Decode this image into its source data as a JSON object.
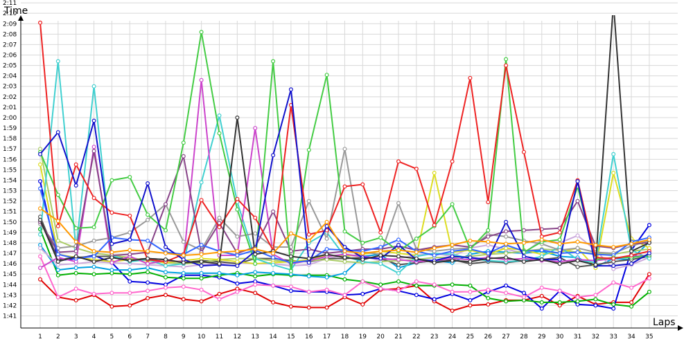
{
  "chart_data": {
    "type": "line",
    "title": "",
    "xlabel": "Laps",
    "ylabel": "Time",
    "x": [
      1,
      2,
      3,
      4,
      5,
      6,
      7,
      8,
      9,
      10,
      11,
      12,
      13,
      14,
      15,
      16,
      17,
      18,
      19,
      20,
      21,
      22,
      23,
      24,
      25,
      26,
      27,
      28,
      29,
      30,
      31,
      32,
      33,
      34,
      35
    ],
    "xlim": [
      0,
      35
    ],
    "ylim": [
      100,
      132
    ],
    "yticks": [
      "1:41",
      "1:42",
      "1:43",
      "1:44",
      "1:45",
      "1:46",
      "1:47",
      "1:48",
      "1:49",
      "1:50",
      "1:51",
      "1:52",
      "1:53",
      "1:54",
      "1:55",
      "1:56",
      "1:57",
      "1:58",
      "1:59",
      "2:00",
      "2:01",
      "2:02",
      "2:03",
      "2:04",
      "2:05",
      "2:06",
      "2:07",
      "2:08",
      "2:09",
      "2:10",
      "2:11"
    ],
    "grid": true,
    "legend": "none",
    "series": [
      {
        "color": "#e00000",
        "values": [
          104.5,
          102.8,
          102.5,
          103.0,
          101.9,
          102.0,
          102.7,
          103.0,
          102.6,
          102.4,
          103.1,
          103.6,
          103.2,
          102.3,
          101.9,
          101.8,
          101.8,
          102.8,
          102.1,
          103.5,
          103.6,
          103.9,
          102.4,
          101.5,
          102.0,
          102.1,
          102.5,
          102.5,
          102.9,
          102.0,
          102.9,
          102.1,
          102.3,
          102.3,
          105.0
        ]
      },
      {
        "color": "#0000e0",
        "values": [
          113.9,
          106.3,
          106.5,
          106.8,
          106.1,
          104.3,
          104.2,
          104.0,
          104.9,
          104.9,
          104.7,
          104.1,
          104.3,
          103.9,
          103.4,
          103.3,
          103.3,
          103.0,
          103.1,
          103.6,
          103.4,
          103.0,
          102.6,
          103.1,
          102.5,
          103.3,
          103.9,
          103.2,
          101.7,
          103.4,
          102.1,
          102.0,
          101.7,
          107.3,
          109.7
        ]
      },
      {
        "color": "#00b000",
        "values": [
          109.3,
          104.9,
          105.1,
          105.0,
          105.1,
          105.0,
          105.2,
          104.7,
          104.6,
          104.6,
          104.9,
          105.1,
          104.8,
          105.0,
          104.9,
          104.9,
          104.9,
          104.5,
          104.3,
          104.0,
          104.3,
          103.9,
          103.9,
          104.0,
          103.9,
          102.7,
          102.4,
          102.5,
          102.3,
          102.3,
          102.4,
          102.6,
          102.1,
          101.9,
          103.3
        ]
      },
      {
        "color": "#ff66cc",
        "values": [
          106.7,
          102.8,
          103.6,
          103.1,
          103.2,
          103.2,
          103.4,
          103.7,
          103.8,
          103.5,
          102.6,
          103.3,
          104.0,
          103.9,
          103.8,
          103.3,
          103.5,
          103.0,
          104.3,
          103.6,
          103.4,
          104.3,
          104.0,
          103.3,
          103.3,
          103.5,
          103.2,
          102.8,
          103.7,
          103.4,
          102.8,
          103.0,
          104.2,
          103.7,
          104.6
        ]
      },
      {
        "color": "#00a0e0",
        "values": [
          107.8,
          105.4,
          105.6,
          105.7,
          105.4,
          105.4,
          105.6,
          105.2,
          105.1,
          105.1,
          105.1,
          104.9,
          105.2,
          105.1,
          105.0,
          104.8,
          104.7,
          105.1,
          106.7,
          106.9,
          105.6,
          106.1,
          106.3,
          106.1,
          106.9,
          107.2,
          107.1,
          107.0,
          107.2,
          106.7,
          106.6,
          105.7,
          106.5,
          106.4,
          108.1
        ]
      },
      {
        "color": "#ccaadd",
        "values": [
          107.5,
          105.9,
          106.0,
          106.2,
          106.1,
          106.0,
          105.9,
          105.8,
          105.7,
          105.9,
          106.0,
          106.1,
          106.0,
          106.0,
          105.8,
          105.9,
          106.5,
          106.8,
          106.7,
          106.3,
          106.5,
          106.8,
          107.0,
          106.7,
          107.5,
          107.8,
          107.4,
          107.0,
          108.3,
          108.0,
          108.7,
          107.3,
          105.5,
          105.9,
          106.6
        ]
      },
      {
        "color": "#505050",
        "values": [
          110.5,
          106.4,
          106.6,
          106.7,
          106.7,
          106.4,
          106.5,
          106.4,
          106.1,
          106.3,
          106.2,
          106.0,
          106.5,
          106.5,
          106.3,
          106.2,
          106.5,
          106.5,
          106.6,
          106.5,
          105.9,
          106.1,
          106.3,
          106.4,
          106.0,
          106.2,
          106.1,
          106.3,
          106.4,
          106.6,
          105.7,
          105.9,
          106.2,
          106.4,
          106.7
        ]
      },
      {
        "color": "#aacc66",
        "values": [
          117.0,
          108.2,
          107.5,
          107.0,
          106.8,
          106.6,
          106.3,
          106.1,
          106.0,
          106.1,
          106.4,
          106.5,
          106.5,
          106.3,
          106.2,
          106.3,
          106.4,
          106.2,
          106.1,
          106.2,
          106.3,
          106.4,
          106.6,
          106.6,
          106.7,
          106.9,
          107.0,
          107.2,
          107.4,
          107.3,
          107.1,
          107.0,
          106.9,
          107.2,
          107.4
        ]
      },
      {
        "color": "#dddd22",
        "values": [
          115.5,
          106.9,
          106.6,
          106.4,
          106.2,
          106.4,
          106.3,
          106.1,
          106.3,
          106.5,
          106.4,
          106.2,
          106.0,
          106.1,
          106.2,
          106.4,
          106.8,
          106.7,
          106.9,
          107.2,
          107.0,
          106.8,
          114.7,
          107.1,
          107.3,
          106.9,
          107.5,
          107.3,
          106.9,
          107.1,
          107.5,
          105.6,
          114.7,
          108.4,
          107.5
        ]
      },
      {
        "color": "#40d0d0",
        "values": [
          108.8,
          125.4,
          107.4,
          123.0,
          106.8,
          106.2,
          106.4,
          105.8,
          106.0,
          113.8,
          120.2,
          111.9,
          106.5,
          105.9,
          105.4,
          108.0,
          109.0,
          106.7,
          106.2,
          106.0,
          105.1,
          106.7,
          107.0,
          106.9,
          106.5,
          106.3,
          106.2,
          106.3,
          106.7,
          107.6,
          106.4,
          106.1,
          116.5,
          107.3,
          106.5
        ]
      },
      {
        "color": "#cc44cc",
        "values": [
          105.6,
          106.6,
          106.2,
          117.2,
          106.1,
          106.7,
          106.0,
          106.3,
          106.2,
          123.6,
          106.8,
          106.8,
          119.0,
          106.9,
          106.0,
          106.3,
          106.7,
          106.9,
          106.7,
          106.5,
          106.4,
          106.2,
          106.3,
          106.5,
          106.4,
          106.6,
          106.4,
          106.5,
          106.3,
          106.2,
          106.4,
          106.3,
          106.5,
          106.7,
          106.8
        ]
      },
      {
        "color": "#999999",
        "values": [
          109.8,
          107.5,
          107.7,
          108.2,
          108.5,
          109.0,
          110.2,
          111.7,
          108.1,
          107.3,
          110.4,
          108.6,
          108.9,
          107.6,
          107.6,
          112.0,
          108.4,
          117.0,
          107.1,
          106.9,
          111.8,
          107.4,
          107.2,
          107.4,
          107.5,
          108.8,
          108.6,
          108.2,
          107.9,
          107.3,
          107.5,
          107.1,
          107.0,
          107.7,
          108.2
        ]
      },
      {
        "color": "#884488",
        "values": [
          110.0,
          107.1,
          107.2,
          116.8,
          106.8,
          106.9,
          107.1,
          111.7,
          116.3,
          107.1,
          109.9,
          107.0,
          107.6,
          111.0,
          107.2,
          107.4,
          107.0,
          107.2,
          107.4,
          107.4,
          107.7,
          107.3,
          107.6,
          107.8,
          107.6,
          108.6,
          109.1,
          109.2,
          109.3,
          109.4,
          112.0,
          107.7,
          107.5,
          107.9,
          108.0
        ]
      },
      {
        "color": "#3366ff",
        "values": [
          113.2,
          106.9,
          106.5,
          106.7,
          108.5,
          108.3,
          108.2,
          107.1,
          106.9,
          107.8,
          107.2,
          106.8,
          107.3,
          106.6,
          106.1,
          106.3,
          107.4,
          107.3,
          107.2,
          107.6,
          108.3,
          107.2,
          106.8,
          107.2,
          107.4,
          107.0,
          107.8,
          107.2,
          107.3,
          107.0,
          107.1,
          106.9,
          106.8,
          108.1,
          108.5
        ]
      },
      {
        "color": "#44cc44",
        "values": [
          116.7,
          112.6,
          109.4,
          109.5,
          114.0,
          114.3,
          110.7,
          109.2,
          117.6,
          128.2,
          118.5,
          111.2,
          106.0,
          125.4,
          105.3,
          116.9,
          124.1,
          109.1,
          108.0,
          108.5,
          107.2,
          108.4,
          109.6,
          111.7,
          107.4,
          109.2,
          125.6,
          107.1,
          108.1,
          108.3,
          113.4,
          106.4,
          106.6,
          106.6,
          106.8
        ]
      },
      {
        "color": "#ee2222",
        "values": [
          129.1,
          109.6,
          115.5,
          112.3,
          110.9,
          110.6,
          106.4,
          106.2,
          106.9,
          112.1,
          109.5,
          112.2,
          110.4,
          107.3,
          121.2,
          108.8,
          109.2,
          113.4,
          113.6,
          109.0,
          115.8,
          115.1,
          109.7,
          115.8,
          123.8,
          111.9,
          125.0,
          116.7,
          108.6,
          109.0,
          114.0,
          106.6,
          106.5,
          106.8,
          107.2
        ]
      },
      {
        "color": "#1111cc",
        "values": [
          116.5,
          118.6,
          113.5,
          119.7,
          107.9,
          108.3,
          113.7,
          107.6,
          106.4,
          105.8,
          105.9,
          105.8,
          107.2,
          116.4,
          122.7,
          106.1,
          109.6,
          107.6,
          106.6,
          106.5,
          107.8,
          106.4,
          106.3,
          106.7,
          106.6,
          106.4,
          110.0,
          106.7,
          106.4,
          106.4,
          113.9,
          105.8,
          105.8,
          106.0,
          107.0
        ]
      },
      {
        "color": "#333333",
        "values": [
          110.2,
          106.2,
          106.7,
          106.2,
          106.6,
          106.3,
          106.5,
          106.4,
          106.1,
          106.2,
          106.0,
          120.0,
          106.9,
          107.2,
          106.7,
          106.5,
          106.9,
          106.6,
          106.4,
          106.8,
          106.7,
          106.5,
          106.1,
          106.3,
          106.2,
          106.5,
          106.6,
          106.2,
          106.4,
          106.0,
          106.3,
          105.9,
          131.0,
          107.2,
          108.0
        ]
      },
      {
        "color": "#ff9900",
        "values": [
          111.3,
          110.1,
          108.1,
          107.2,
          107.1,
          107.3,
          107.2,
          107.0,
          106.8,
          106.9,
          107.1,
          107.2,
          107.4,
          107.0,
          108.9,
          108.2,
          110.0,
          107.2,
          107.0,
          107.2,
          107.3,
          107.1,
          107.5,
          107.8,
          108.2,
          108.1,
          107.9,
          108.0,
          108.3,
          107.9,
          108.1,
          107.8,
          107.6,
          107.9,
          108.3
        ]
      }
    ]
  }
}
